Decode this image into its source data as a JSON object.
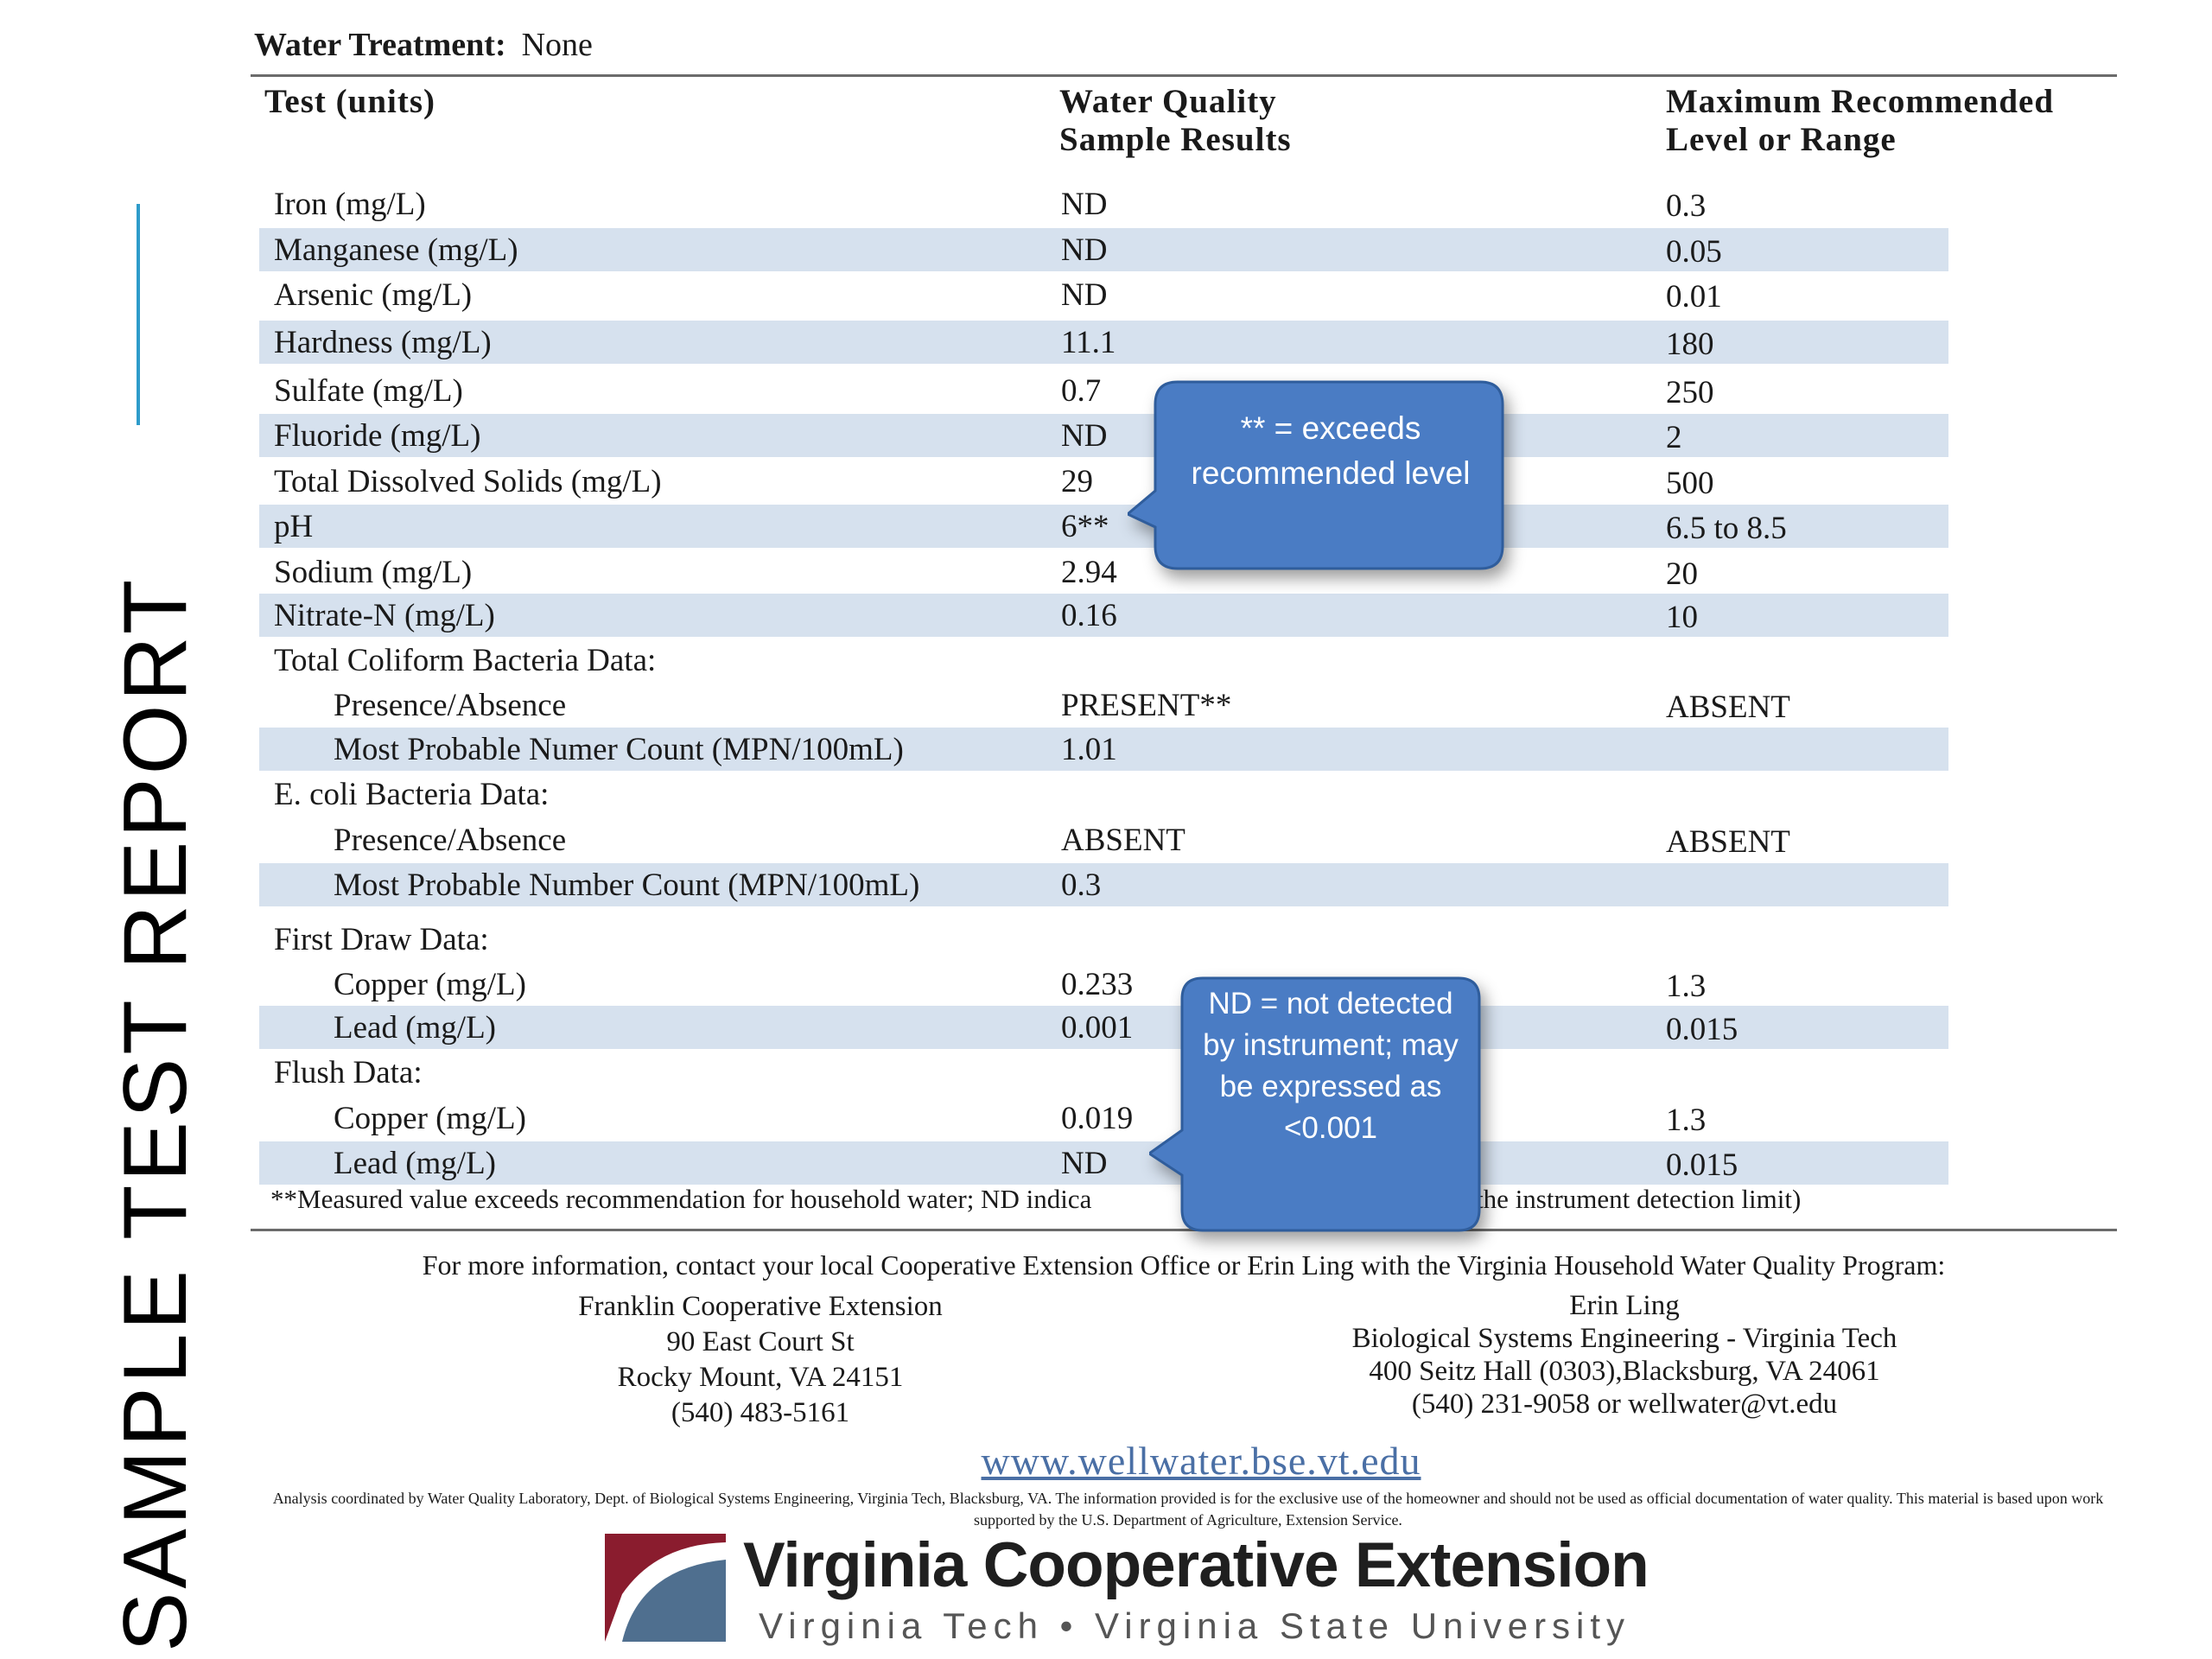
{
  "slide_title": "SAMPLE TEST REPORT",
  "treatment": {
    "label": "Water Treatment:",
    "value": "None"
  },
  "headers": {
    "test": "Test (units)",
    "result": [
      "Water Quality",
      "Sample Results"
    ],
    "max": [
      "Maximum Recommended",
      "Level or Range"
    ]
  },
  "rows": [
    {
      "test": "Iron (mg/L)",
      "result": "ND",
      "max": "0.3"
    },
    {
      "test": "Manganese (mg/L)",
      "result": "ND",
      "max": "0.05"
    },
    {
      "test": "Arsenic (mg/L)",
      "result": "ND",
      "max": "0.01"
    },
    {
      "test": "Hardness (mg/L)",
      "result": "11.1",
      "max": "180"
    },
    {
      "test": "Sulfate (mg/L)",
      "result": "0.7",
      "max": "250"
    },
    {
      "test": "Fluoride (mg/L)",
      "result": "ND",
      "max": "2"
    },
    {
      "test": "Total Dissolved Solids (mg/L)",
      "result": "29",
      "max": "500"
    },
    {
      "test": "pH",
      "result": "6**",
      "max": "6.5 to 8.5"
    },
    {
      "test": "Sodium (mg/L)",
      "result": "2.94",
      "max": "20"
    },
    {
      "test": "Nitrate-N (mg/L)",
      "result": "0.16",
      "max": "10"
    },
    {
      "test": "Total Coliform Bacteria Data:",
      "result": "",
      "max": ""
    },
    {
      "test": "Presence/Absence",
      "result": "PRESENT**",
      "max": "ABSENT"
    },
    {
      "test": "Most Probable Numer Count (MPN/100mL)",
      "result": "1.01",
      "max": ""
    },
    {
      "test": "E. coli Bacteria Data:",
      "result": "",
      "max": ""
    },
    {
      "test": "Presence/Absence",
      "result": "ABSENT",
      "max": "ABSENT"
    },
    {
      "test": "Most Probable Number Count (MPN/100mL)",
      "result": "0.3",
      "max": ""
    },
    {
      "test": "First Draw Data:",
      "result": "",
      "max": ""
    },
    {
      "test": "Copper (mg/L)",
      "result": "0.233",
      "max": "1.3"
    },
    {
      "test": "Lead (mg/L)",
      "result": "0.001",
      "max": "0.015"
    },
    {
      "test": "Flush Data:",
      "result": "",
      "max": ""
    },
    {
      "test": "Copper (mg/L)",
      "result": "0.019",
      "max": "1.3"
    },
    {
      "test": "Lead (mg/L)",
      "result": "ND",
      "max": "0.015"
    }
  ],
  "footnote": {
    "left": "**Measured value exceeds recommendation for household water;  ND indica",
    "right": "r the instrument detection limit)"
  },
  "callouts": {
    "exceeds": "** = exceeds recommended level",
    "nd": "ND = not detected by instrument; may be expressed as <0.001"
  },
  "contact": {
    "intro": "For more information, contact your local Cooperative Extension Office or Erin Ling with the Virginia Household Water Quality Program:",
    "left": [
      "Franklin Cooperative Extension",
      "90 East Court St",
      "Rocky Mount, VA 24151",
      "(540) 483-5161"
    ],
    "right": [
      "Erin Ling",
      "Biological Systems Engineering - Virginia Tech",
      "400 Seitz Hall (0303),Blacksburg, VA 24061",
      "(540) 231-9058 or wellwater@vt.edu"
    ]
  },
  "website": "www.wellwater.bse.vt.edu",
  "disclaimer": "Analysis coordinated by Water Quality Laboratory, Dept. of Biological Systems Engineering, Virginia Tech, Blacksburg, VA.  The information provided is for the exclusive use of the homeowner and should not be used as official documentation of water quality.  This material is based upon work supported by the U.S. Department of Agriculture, Extension Service.",
  "logo": {
    "title": "Virginia Cooperative Extension",
    "subtitle": "Virginia Tech  •  Virginia State University"
  },
  "colors": {
    "band": "#d6e1ee",
    "callout_fill": "#4a7cc4",
    "callout_stroke": "#2f5d9c",
    "accent": "#2e9cca",
    "link": "#4a6fa5",
    "logo_red": "#8a1c2e",
    "logo_blue": "#4f6f8f"
  }
}
